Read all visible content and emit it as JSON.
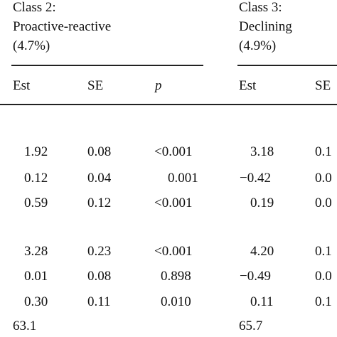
{
  "classes": [
    {
      "header_line1": "Class 2:",
      "header_line2": "Proactive-reactive",
      "header_line3": "(4.7%)",
      "col_headers": [
        "Est",
        "SE",
        "p"
      ]
    },
    {
      "header_line1": "Class 3:",
      "header_line2": "Declining",
      "header_line3": "(4.9%)",
      "col_headers": [
        "Est",
        "SE"
      ]
    }
  ],
  "group1": [
    {
      "c2": {
        "est": "1.92",
        "se": "0.08",
        "p": "<0.001"
      },
      "c3": {
        "est": "3.18",
        "se": "0.1"
      }
    },
    {
      "c2": {
        "est": "0.12",
        "se": "0.04",
        "p": "0.001"
      },
      "c3": {
        "est": "−0.42",
        "se": "0.0"
      }
    },
    {
      "c2": {
        "est": "0.59",
        "se": "0.12",
        "p": "<0.001"
      },
      "c3": {
        "est": "0.19",
        "se": "0.0"
      }
    }
  ],
  "group2": [
    {
      "c2": {
        "est": "3.28",
        "se": "0.23",
        "p": "<0.001"
      },
      "c3": {
        "est": "4.20",
        "se": "0.1"
      }
    },
    {
      "c2": {
        "est": "0.01",
        "se": "0.08",
        "p": "0.898"
      },
      "c3": {
        "est": "−0.49",
        "se": "0.0"
      }
    },
    {
      "c2": {
        "est": "0.30",
        "se": "0.11",
        "p": "0.010"
      },
      "c3": {
        "est": "0.11",
        "se": "0.1"
      }
    }
  ],
  "last_row": {
    "c2": "63.1",
    "c3": "65.7"
  }
}
